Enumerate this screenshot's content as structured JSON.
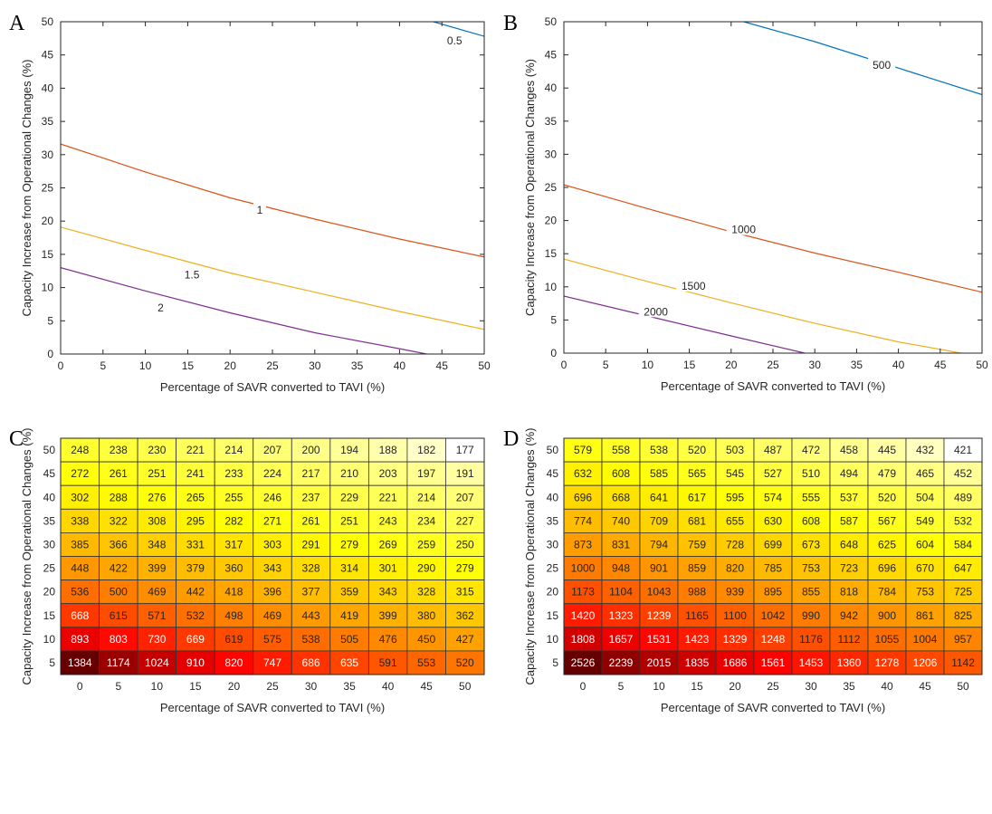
{
  "chart_data": [
    {
      "panel": "A",
      "type": "line",
      "xlabel": "Percentage of SAVR converted to TAVI (%)",
      "ylabel": "Capacity Increase from Operational Changes (%)",
      "xlim": [
        0,
        50
      ],
      "ylim": [
        0,
        50
      ],
      "xticks": [
        "0",
        "5",
        "10",
        "15",
        "20",
        "25",
        "30",
        "35",
        "40",
        "45",
        "50"
      ],
      "yticks": [
        "0",
        "5",
        "10",
        "15",
        "20",
        "25",
        "30",
        "35",
        "40",
        "45",
        "50"
      ],
      "grid": false,
      "series": [
        {
          "name": "0.5",
          "color": "#0072bd",
          "x": [
            44,
            50
          ],
          "y": [
            50,
            47.8
          ],
          "label_pos": [
            46.5,
            47.0
          ]
        },
        {
          "name": "1",
          "color": "#d95319",
          "x": [
            0,
            10,
            20,
            30,
            40,
            50
          ],
          "y": [
            31.6,
            27.4,
            23.5,
            20.3,
            17.3,
            14.6
          ],
          "label_pos": [
            23.5,
            21.5
          ]
        },
        {
          "name": "1.5",
          "color": "#edb120",
          "x": [
            0,
            10,
            20,
            30,
            40,
            50
          ],
          "y": [
            19.1,
            15.6,
            12.2,
            9.3,
            6.4,
            3.7
          ],
          "label_pos": [
            15.5,
            11.8
          ]
        },
        {
          "name": "2",
          "color": "#7e2f8e",
          "x": [
            0,
            10,
            20,
            30,
            40,
            43.2
          ],
          "y": [
            13.0,
            9.5,
            6.2,
            3.2,
            0.8,
            0
          ],
          "label_pos": [
            11.8,
            6.8
          ]
        }
      ]
    },
    {
      "panel": "B",
      "type": "line",
      "xlabel": "Percentage of SAVR converted to TAVI (%)",
      "ylabel": "Capacity Increase from Operational Changes (%)",
      "xlim": [
        0,
        50
      ],
      "ylim": [
        0,
        50
      ],
      "xticks": [
        "0",
        "5",
        "10",
        "15",
        "20",
        "25",
        "30",
        "35",
        "40",
        "45",
        "50"
      ],
      "yticks": [
        "0",
        "5",
        "10",
        "15",
        "20",
        "25",
        "30",
        "35",
        "40",
        "45",
        "50"
      ],
      "grid": false,
      "series": [
        {
          "name": "500",
          "color": "#0072bd",
          "x": [
            21.5,
            30,
            40,
            50
          ],
          "y": [
            50,
            47.0,
            43.0,
            39.0
          ],
          "label_pos": [
            38.0,
            43.3
          ]
        },
        {
          "name": "1000",
          "color": "#d95319",
          "x": [
            0,
            10,
            20,
            30,
            40,
            50
          ],
          "y": [
            25.4,
            21.8,
            18.3,
            15.1,
            12.2,
            9.2
          ],
          "label_pos": [
            21.5,
            18.5
          ]
        },
        {
          "name": "1500",
          "color": "#edb120",
          "x": [
            0,
            10,
            20,
            30,
            40,
            47.5
          ],
          "y": [
            14.2,
            10.8,
            7.6,
            4.5,
            1.7,
            0
          ],
          "label_pos": [
            15.5,
            10.0
          ]
        },
        {
          "name": "2000",
          "color": "#7e2f8e",
          "x": [
            0,
            10,
            20,
            28.8
          ],
          "y": [
            8.6,
            5.6,
            2.6,
            0
          ],
          "label_pos": [
            11.0,
            6.1
          ]
        }
      ]
    },
    {
      "panel": "C",
      "type": "heatmap",
      "xlabel": "Percentage of SAVR converted to TAVI (%)",
      "ylabel": "Capacity Increase from Operational Changes (%)",
      "x": [
        "0",
        "5",
        "10",
        "15",
        "20",
        "25",
        "30",
        "35",
        "40",
        "45",
        "50"
      ],
      "y": [
        "50",
        "45",
        "40",
        "35",
        "30",
        "25",
        "20",
        "15",
        "10",
        "5"
      ],
      "values": [
        [
          248,
          238,
          230,
          221,
          214,
          207,
          200,
          194,
          188,
          182,
          177
        ],
        [
          272,
          261,
          251,
          241,
          233,
          224,
          217,
          210,
          203,
          197,
          191
        ],
        [
          302,
          288,
          276,
          265,
          255,
          246,
          237,
          229,
          221,
          214,
          207
        ],
        [
          338,
          322,
          308,
          295,
          282,
          271,
          261,
          251,
          243,
          234,
          227
        ],
        [
          385,
          366,
          348,
          331,
          317,
          303,
          291,
          279,
          269,
          259,
          250
        ],
        [
          448,
          422,
          399,
          379,
          360,
          343,
          328,
          314,
          301,
          290,
          279
        ],
        [
          536,
          500,
          469,
          442,
          418,
          396,
          377,
          359,
          343,
          328,
          315
        ],
        [
          668,
          615,
          571,
          532,
          498,
          469,
          443,
          419,
          399,
          380,
          362
        ],
        [
          893,
          803,
          730,
          669,
          619,
          575,
          538,
          505,
          476,
          450,
          427
        ],
        [
          1384,
          1174,
          1024,
          910,
          820,
          747,
          686,
          635,
          591,
          553,
          520
        ]
      ],
      "colormap": "hot"
    },
    {
      "panel": "D",
      "type": "heatmap",
      "xlabel": "Percentage of SAVR converted to TAVI (%)",
      "ylabel": "Capacity Increase from Operational Changes (%)",
      "x": [
        "0",
        "5",
        "10",
        "15",
        "20",
        "25",
        "30",
        "35",
        "40",
        "45",
        "50"
      ],
      "y": [
        "50",
        "45",
        "40",
        "35",
        "30",
        "25",
        "20",
        "15",
        "10",
        "5"
      ],
      "values": [
        [
          579,
          558,
          538,
          520,
          503,
          487,
          472,
          458,
          445,
          432,
          421
        ],
        [
          632,
          608,
          585,
          565,
          545,
          527,
          510,
          494,
          479,
          465,
          452
        ],
        [
          696,
          668,
          641,
          617,
          595,
          574,
          555,
          537,
          520,
          504,
          489
        ],
        [
          774,
          740,
          709,
          681,
          655,
          630,
          608,
          587,
          567,
          549,
          532
        ],
        [
          873,
          831,
          794,
          759,
          728,
          699,
          673,
          648,
          625,
          604,
          584
        ],
        [
          1000,
          948,
          901,
          859,
          820,
          785,
          753,
          723,
          696,
          670,
          647
        ],
        [
          1173,
          1104,
          1043,
          988,
          939,
          895,
          855,
          818,
          784,
          753,
          725
        ],
        [
          1420,
          1323,
          1239,
          1165,
          1100,
          1042,
          990,
          942,
          900,
          861,
          825
        ],
        [
          1808,
          1657,
          1531,
          1423,
          1329,
          1248,
          1176,
          1112,
          1055,
          1004,
          957
        ],
        [
          2526,
          2239,
          2015,
          1835,
          1686,
          1561,
          1453,
          1360,
          1278,
          1206,
          1142
        ]
      ],
      "colormap": "hot"
    }
  ]
}
